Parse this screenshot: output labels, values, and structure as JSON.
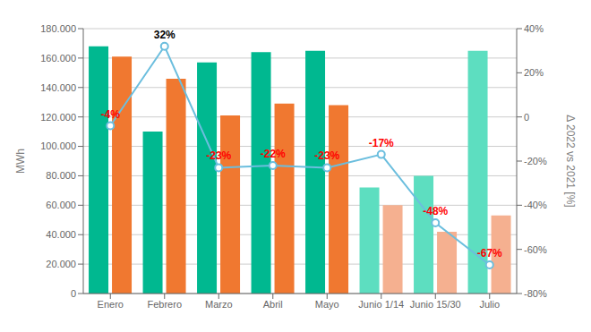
{
  "chart_data": {
    "type": "bar",
    "categories": [
      "Enero",
      "Febrero",
      "Marzo",
      "Abril",
      "Mayo",
      "Junio 1/14",
      "Junio 15/30",
      "Julio"
    ],
    "series": [
      {
        "type": "bar",
        "values": [
          168000,
          110000,
          157000,
          164000,
          165000,
          72000,
          80000,
          165000
        ],
        "colors": [
          "#00B890",
          "#00B890",
          "#00B890",
          "#00B890",
          "#00B890",
          "#5DDEC0",
          "#5DDEC0",
          "#5DDEC0"
        ]
      },
      {
        "type": "bar",
        "values": [
          161000,
          146000,
          121000,
          129000,
          128000,
          60000,
          42000,
          53000
        ],
        "colors": [
          "#F07830",
          "#F07830",
          "#F07830",
          "#F07830",
          "#F07830",
          "#F5B090",
          "#F5B090",
          "#F5B090"
        ]
      },
      {
        "type": "line",
        "axis": "y2",
        "color": "#6BBEDE",
        "marker": "circle",
        "values": [
          -4,
          32,
          -23,
          -22,
          -23,
          -17,
          -48,
          -67
        ],
        "data_labels": true,
        "value_labels": [
          "-4%",
          "32%",
          "-23%",
          "-22%",
          "-23%",
          "-17%",
          "-48%",
          "-67%"
        ],
        "colors": [
          "#FF0000",
          "#000000",
          "#FF0000",
          "#FF0000",
          "#FF0000",
          "#FF0000",
          "#FF0000",
          "#FF0000"
        ]
      }
    ],
    "ylabel": "MWh",
    "y2label": "Δ 2022 vs 2021 [%]",
    "ylim": [
      0,
      180000
    ],
    "yticks": [
      0,
      {
        "value": 20000,
        "label": "20.000"
      },
      {
        "value": 40000,
        "label": "40.000"
      },
      {
        "value": 60000,
        "label": "60.000"
      },
      {
        "value": 80000,
        "label": "80.000"
      },
      {
        "value": 100000,
        "label": "100.000"
      },
      {
        "value": 120000,
        "label": "120.000"
      },
      {
        "value": 140000,
        "label": "140.000"
      },
      {
        "value": 160000,
        "label": "160.000"
      },
      {
        "value": 180000,
        "label": "180.000"
      }
    ],
    "y2lim": [
      -80,
      40
    ],
    "y2ticks": [
      {
        "value": -80,
        "label": "-80%"
      },
      {
        "value": -60,
        "label": "-60%"
      },
      {
        "value": -40,
        "label": "-40%"
      },
      {
        "value": -20,
        "label": "-20%"
      },
      0,
      {
        "value": 20,
        "label": "20%"
      },
      {
        "value": 40,
        "label": "40%"
      }
    ],
    "grid": true
  }
}
